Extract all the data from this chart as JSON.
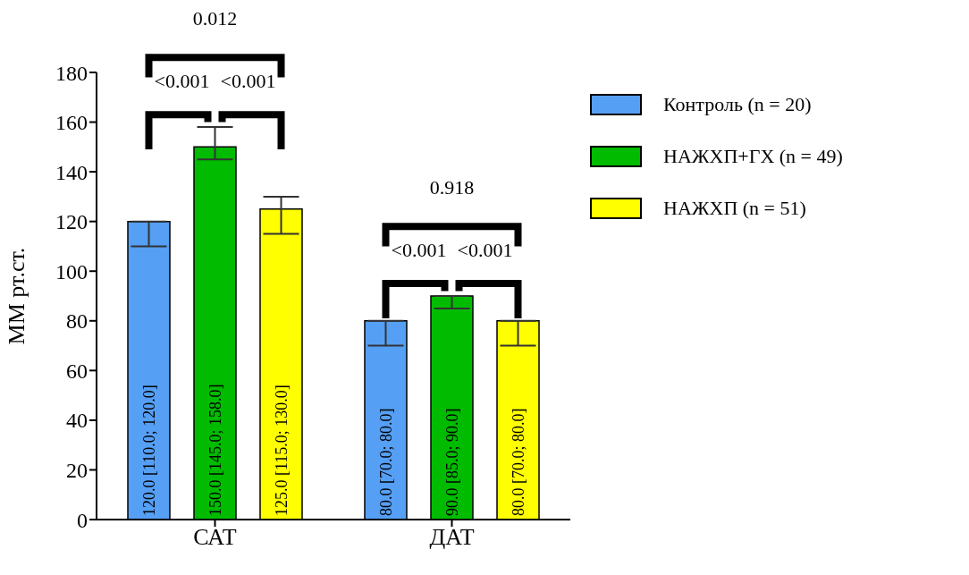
{
  "chart_data": {
    "type": "bar",
    "ylabel": "ММ рт.ст.",
    "categories": [
      "САТ",
      "ДАТ"
    ],
    "ylim": [
      0,
      180
    ],
    "yticks": [
      0,
      20,
      40,
      60,
      80,
      100,
      120,
      140,
      160,
      180
    ],
    "legend": "top right",
    "series": [
      {
        "name": "Контроль (n = 20)",
        "color": "#559ff5",
        "values": [
          120,
          80
        ],
        "errors": [
          [
            110,
            120
          ],
          [
            70,
            80
          ]
        ],
        "value_labels": [
          "120.0 [110.0; 120.0]",
          "80.0 [70.0; 80.0]"
        ]
      },
      {
        "name": "НАЖХП+ГХ (n = 49)",
        "color": "#00bb00",
        "values": [
          150,
          90
        ],
        "errors": [
          [
            145,
            158
          ],
          [
            85,
            90
          ]
        ],
        "value_labels": [
          "150.0 [145.0; 158.0]",
          "90.0 [85.0; 90.0]"
        ]
      },
      {
        "name": "НАЖХП (n = 51)",
        "color": "#ffff00",
        "values": [
          125,
          80
        ],
        "errors": [
          [
            115,
            130
          ],
          [
            70,
            80
          ]
        ],
        "value_labels": [
          "125.0 [115.0; 130.0]",
          "80.0 [70.0; 80.0]"
        ]
      }
    ],
    "annotations": [
      "0.012",
      "<0.001",
      "<0.001",
      "0.918",
      "<0.001",
      "<0.001"
    ]
  }
}
